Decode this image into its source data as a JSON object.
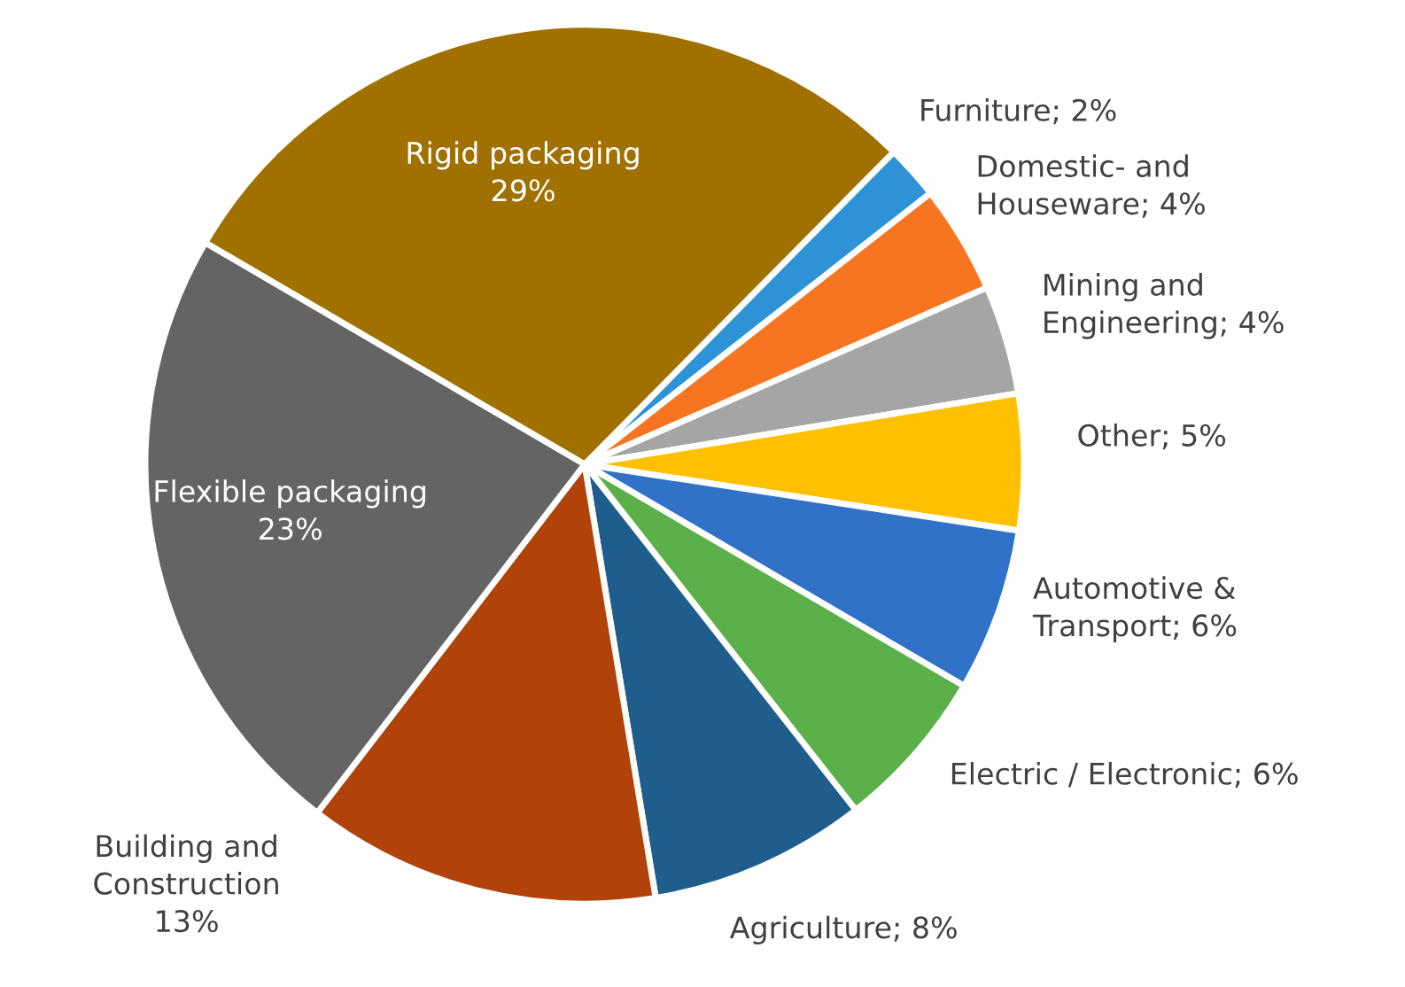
{
  "chart_data": {
    "type": "pie",
    "categories": [
      "Furniture",
      "Domestic- and\nHouseware",
      "Mining and\nEngineering",
      "Other",
      "Automotive &\nTransport",
      "Electric / Electronic",
      "Agriculture",
      "Building and\nConstruction",
      "Flexible packaging",
      "Rigid packaging"
    ],
    "values": [
      2,
      4,
      4,
      5,
      6,
      6,
      8,
      13,
      23,
      29
    ],
    "value_labels": [
      "2%",
      "4%",
      "4%",
      "5%",
      "6%",
      "6%",
      "8%",
      "13%",
      "23%",
      "29%"
    ],
    "colors": [
      "#2e93d6",
      "#f77420",
      "#a5a5a5",
      "#ffc000",
      "#2f72c7",
      "#5bb04a",
      "#1f5d8c",
      "#b0420a",
      "#646464",
      "#a07000"
    ]
  }
}
